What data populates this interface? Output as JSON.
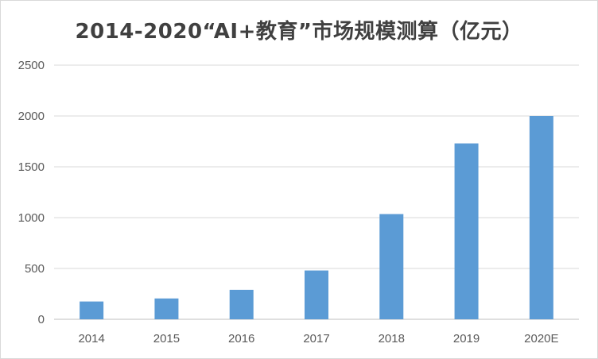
{
  "chart_data": {
    "type": "bar",
    "title": "2014-2020“AI+教育”市场规模测算（亿元）",
    "categories": [
      "2014",
      "2015",
      "2016",
      "2017",
      "2018",
      "2019",
      "2020E"
    ],
    "values": [
      175,
      205,
      290,
      480,
      1035,
      1730,
      2000
    ],
    "ylim": [
      0,
      2500
    ],
    "yticks": [
      0,
      500,
      1000,
      1500,
      2000,
      2500
    ],
    "ytick_labels": [
      "0",
      "500",
      "1000",
      "1500",
      "2000",
      "2500"
    ],
    "grid": true,
    "legend": "none",
    "bar_color": "#5b9bd5",
    "grid_color": "#d9d9d9",
    "axis_color": "#bfbfbf",
    "text_color": "#595959"
  }
}
